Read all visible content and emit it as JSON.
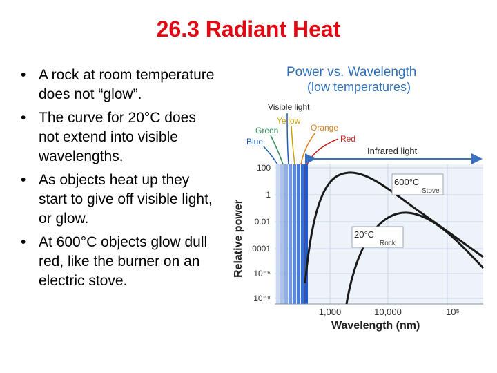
{
  "slide": {
    "title": "26.3 Radiant Heat",
    "bullet_symbol": "•",
    "bullets": [
      "A rock at room temperature does not “glow”.",
      "The curve for 20°C does not extend into visible wavelengths.",
      "As objects heat up they start to give off visible light, or glow.",
      "At 600°C objects glow dull red, like the burner on an electric stove."
    ]
  },
  "figure": {
    "title_line1": "Power vs. Wavelength",
    "title_line2": "(low temperatures)",
    "labels": {
      "visible_light": "Visible light",
      "yellow": "Yellow",
      "green": "Green",
      "blue": "Blue",
      "orange": "Orange",
      "red": "Red",
      "infrared": "Infrared  light"
    },
    "y_axis_label": "Relative power",
    "x_axis_label": "Wavelength (nm)",
    "y_ticks": [
      "100",
      "1",
      "0.01",
      ".0001",
      "10⁻⁶",
      "10⁻⁸"
    ],
    "x_ticks": [
      "1,000",
      "10,000",
      "10⁵"
    ],
    "curve_labels": {
      "stove_temp": "600°C",
      "stove_name": "Stove",
      "rock_temp": "20°C",
      "rock_name": "Rock"
    },
    "colors": {
      "title_blue": "#2f6fb7",
      "accent_red": "#e30613",
      "chart_bg": "#eef3fa",
      "grid": "#c9d6ea",
      "visible_band": "#3a6fd8",
      "label_blue": "#1f5fb0",
      "label_green": "#2e8b57",
      "label_yellow": "#c8a000",
      "label_orange": "#d9801e",
      "label_red": "#cc2020",
      "arrow_blue": "#3b6fc0"
    }
  }
}
